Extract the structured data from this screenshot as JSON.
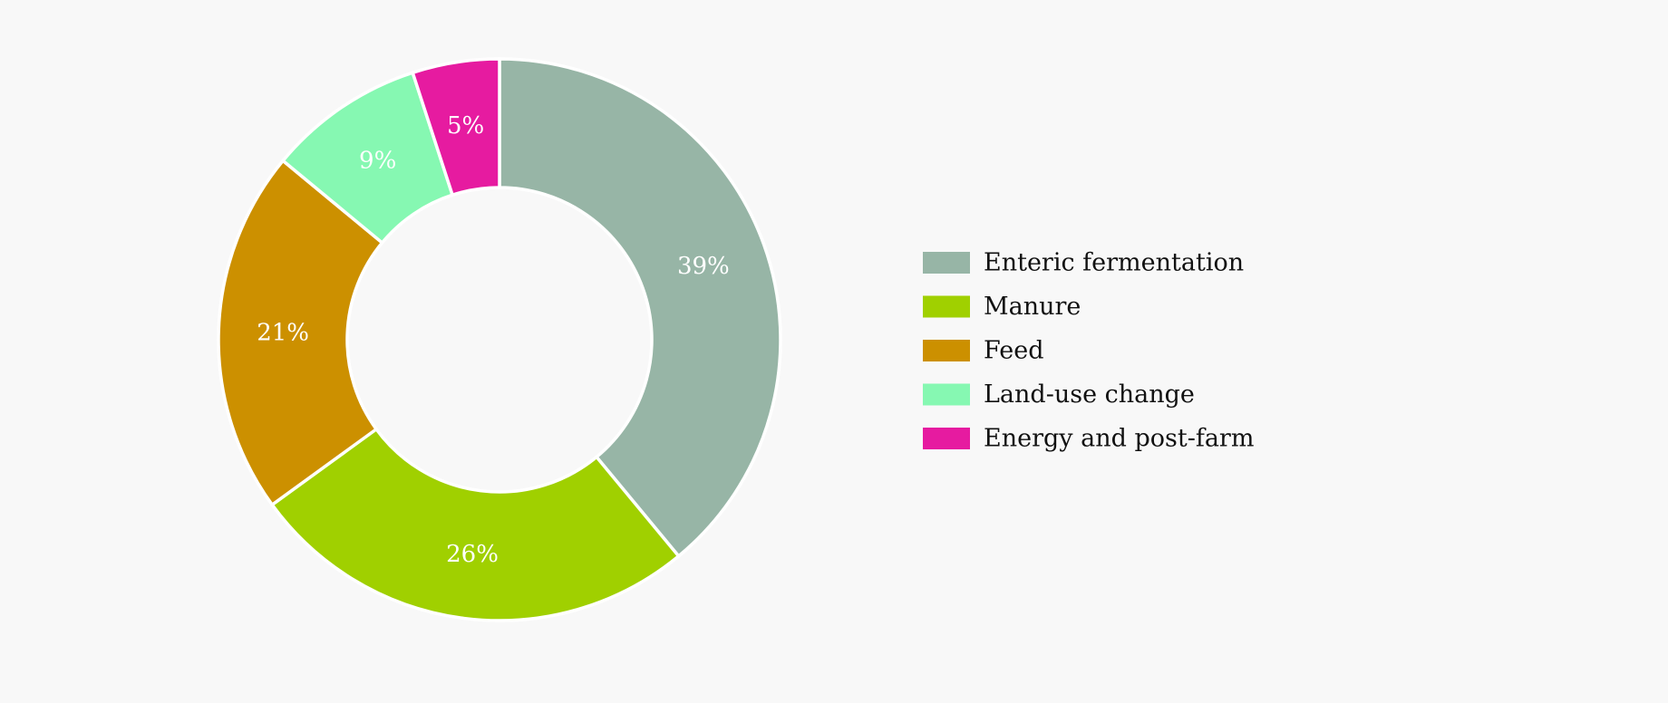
{
  "chart_data": {
    "type": "pie",
    "variant": "donut",
    "title": "",
    "legend_position": "right",
    "data_labels": [
      "39%",
      "26%",
      "21%",
      "9%",
      "5%"
    ],
    "categories": [
      "Enteric fermentation",
      "Manure",
      "Feed",
      "Land-use change",
      "Energy and post-farm"
    ],
    "values": [
      39,
      26,
      21,
      9,
      5
    ],
    "colors": [
      "#97b5a6",
      "#a0d000",
      "#cc9000",
      "#86f8b2",
      "#e61ba0"
    ],
    "start_angle_deg": 0,
    "direction": "clockwise"
  }
}
